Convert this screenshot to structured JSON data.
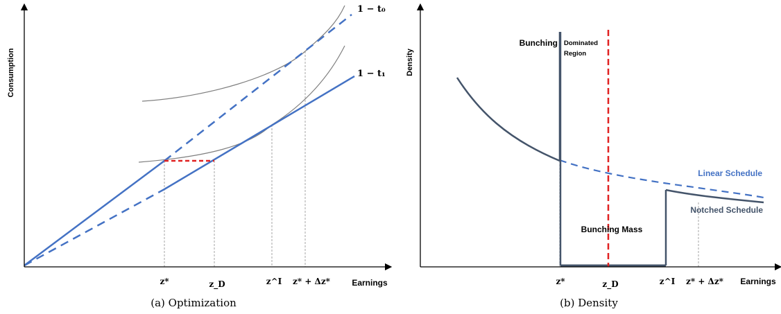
{
  "panel_a": {
    "y_axis_label": "Consumption",
    "x_axis_label": "Earnings",
    "tax_label_top": "1 − t₀",
    "tax_label_bottom": "1 − t₁",
    "ticks": [
      "z*",
      "z_D",
      "z^I",
      "z* + Δz*"
    ],
    "caption": "(a) Optimization",
    "colors": {
      "budget": "#4472c4",
      "indifference": "#7f7f7f",
      "notch_gap": "#e02020",
      "guide": "#a6a6a6",
      "axis": "#000000"
    }
  },
  "panel_b": {
    "y_axis_label": "Density",
    "x_axis_label": "Earnings",
    "bunching_label": "Bunching",
    "dominated_label_1": "Dominated",
    "dominated_label_2": "Region",
    "linear_schedule_label": "Linear Schedule",
    "notched_schedule_label": "Notched Schedule",
    "bunching_mass_label": "Bunching Mass",
    "ticks": [
      "z*",
      "z_D",
      "z^I",
      "z* + Δz*"
    ],
    "caption": "(b) Density",
    "colors": {
      "notched": "#44546a",
      "linear": "#4472c4",
      "dominated_line": "#e02020",
      "guide": "#a6a6a6"
    }
  }
}
